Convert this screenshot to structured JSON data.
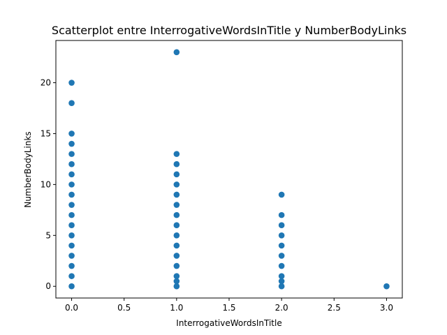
{
  "chart_data": {
    "type": "scatter",
    "title": "Scatterplot entre InterrogativeWordsInTitle y NumberBodyLinks",
    "xlabel": "InterrogativeWordsInTitle",
    "ylabel": "NumberBodyLinks",
    "xlim": [
      -0.15,
      3.15
    ],
    "ylim": [
      -1.15,
      24.15
    ],
    "grid": false,
    "color": "#1f77b4",
    "xticks": [
      0.0,
      0.5,
      1.0,
      1.5,
      2.0,
      2.5,
      3.0
    ],
    "xtick_labels": [
      "0.0",
      "0.5",
      "1.0",
      "1.5",
      "2.0",
      "2.5",
      "3.0"
    ],
    "yticks": [
      0,
      5,
      10,
      15,
      20
    ],
    "ytick_labels": [
      "0",
      "5",
      "10",
      "15",
      "20"
    ],
    "series": [
      {
        "name": "points",
        "x": [
          0,
          0,
          0,
          0,
          0,
          0,
          0,
          0,
          0,
          0,
          0,
          0,
          0,
          0,
          0,
          0,
          0,
          0,
          1,
          1,
          1,
          1,
          1,
          1,
          1,
          1,
          1,
          1,
          1,
          1,
          1,
          1,
          1,
          1,
          2,
          2,
          2,
          2,
          2,
          2,
          2,
          2,
          2,
          2,
          3
        ],
        "y": [
          0,
          1,
          2,
          3,
          4,
          5,
          6,
          7,
          8,
          9,
          10,
          11,
          12,
          13,
          14,
          15,
          18,
          20,
          0,
          1,
          2,
          3,
          4,
          5,
          6,
          7,
          8,
          9,
          10,
          11,
          12,
          13,
          23,
          0.5,
          0,
          1,
          2,
          3,
          4,
          5,
          6,
          7,
          9,
          0.5,
          0
        ]
      }
    ]
  }
}
